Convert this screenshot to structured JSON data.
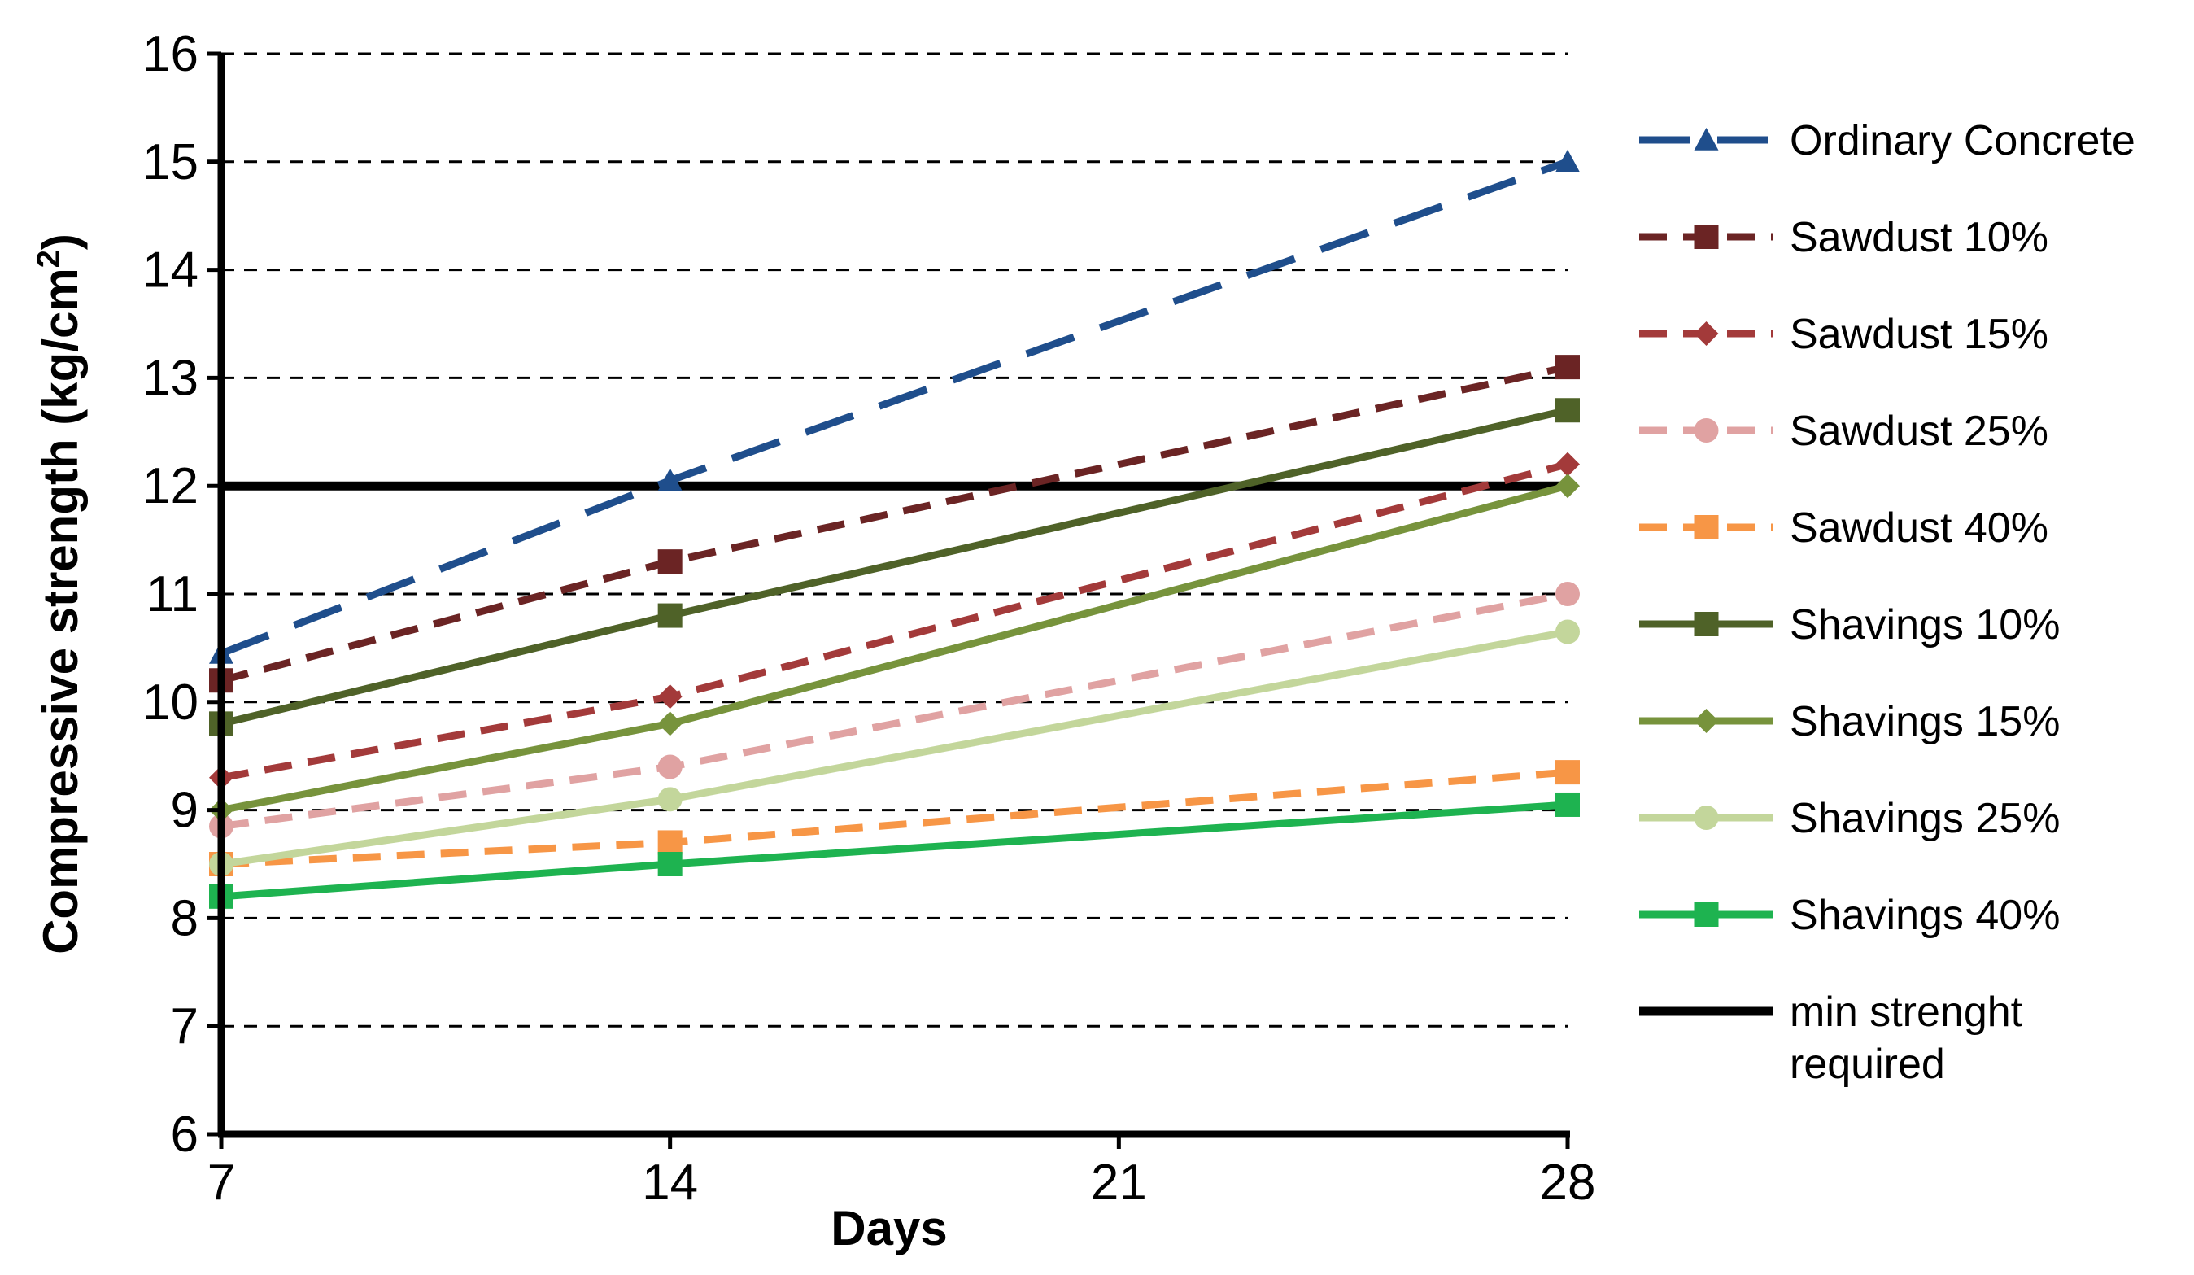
{
  "chart_data": {
    "type": "line",
    "xlabel": "Days",
    "ylabel": "Compressive strength (kg/cm",
    "ylabel_superscript": "2",
    "ylabel_close": ")",
    "x": [
      7,
      14,
      21,
      28
    ],
    "x_ticks": [
      "7",
      "14",
      "21",
      "28"
    ],
    "xlim": [
      7,
      28
    ],
    "ylim": [
      6,
      16
    ],
    "y_ticks": [
      "6",
      "7",
      "8",
      "9",
      "10",
      "11",
      "12",
      "13",
      "14",
      "15",
      "16"
    ],
    "grid": "horizontal dashed",
    "legend_position": "right",
    "series": [
      {
        "name": "Ordinary Concrete",
        "x": [
          7,
          14,
          28
        ],
        "values": [
          10.45,
          12.05,
          15.0
        ],
        "color": "#1f4e8c",
        "dash": "long-dash",
        "marker": "triangle"
      },
      {
        "name": "Sawdust 10%",
        "x": [
          7,
          14,
          28
        ],
        "values": [
          10.2,
          11.3,
          13.1
        ],
        "color": "#6b2424",
        "dash": "dash",
        "marker": "square"
      },
      {
        "name": "Sawdust 15%",
        "x": [
          7,
          14,
          28
        ],
        "values": [
          9.3,
          10.05,
          12.2
        ],
        "color": "#a33a3a",
        "dash": "dash",
        "marker": "diamond"
      },
      {
        "name": "Sawdust 25%",
        "x": [
          7,
          14,
          28
        ],
        "values": [
          8.85,
          9.4,
          11.0
        ],
        "color": "#e0a2a2",
        "dash": "dash",
        "marker": "circle"
      },
      {
        "name": "Sawdust 40%",
        "x": [
          7,
          14,
          28
        ],
        "values": [
          8.5,
          8.7,
          9.35
        ],
        "color": "#f79646",
        "dash": "dash",
        "marker": "square"
      },
      {
        "name": "Shavings 10%",
        "x": [
          7,
          14,
          28
        ],
        "values": [
          9.8,
          10.8,
          12.7
        ],
        "color": "#4f6228",
        "dash": "solid",
        "marker": "square"
      },
      {
        "name": "Shavings 15%",
        "x": [
          7,
          14,
          28
        ],
        "values": [
          9.0,
          9.8,
          12.0
        ],
        "color": "#77933c",
        "dash": "solid",
        "marker": "diamond"
      },
      {
        "name": "Shavings 25%",
        "x": [
          7,
          14,
          28
        ],
        "values": [
          8.5,
          9.1,
          10.65
        ],
        "color": "#c3d69b",
        "dash": "solid",
        "marker": "circle"
      },
      {
        "name": "Shavings 40%",
        "x": [
          7,
          14,
          28
        ],
        "values": [
          8.2,
          8.5,
          9.05
        ],
        "color": "#1eb350",
        "dash": "solid",
        "marker": "square"
      },
      {
        "name": "min strenght required",
        "name_lines": [
          "min strenght",
          "required"
        ],
        "x": [
          7,
          28
        ],
        "values": [
          12,
          12
        ],
        "color": "#000000",
        "dash": "solid",
        "marker": "none"
      }
    ]
  }
}
